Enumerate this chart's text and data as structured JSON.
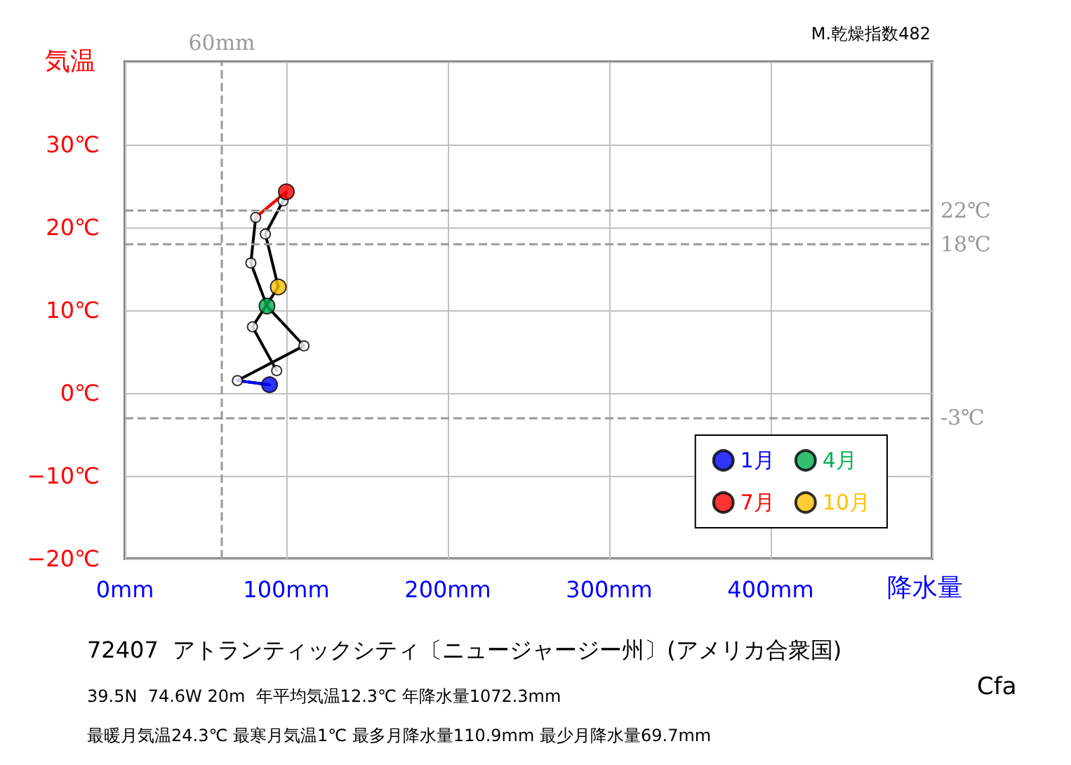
{
  "chart_data": {
    "type": "line",
    "title": "72407  アトランティックシティ〔ニュージャージー州〕(アメリカ合衆国)",
    "xlabel": "降水量",
    "ylabel": "気温",
    "xlim": [
      0,
      500
    ],
    "xticks": [
      {
        "value": 0,
        "label": "0mm"
      },
      {
        "value": 100,
        "label": "100mm"
      },
      {
        "value": 200,
        "label": "200mm"
      },
      {
        "value": 300,
        "label": "300mm"
      },
      {
        "value": 400,
        "label": "400mm"
      },
      {
        "value": 500,
        "label": null
      }
    ],
    "ylim": [
      -20,
      40
    ],
    "yticks": [
      {
        "value": -20,
        "label": "−20℃"
      },
      {
        "value": -10,
        "label": "−10℃"
      },
      {
        "value": 0,
        "label": "0℃"
      },
      {
        "value": 10,
        "label": "10℃"
      },
      {
        "value": 20,
        "label": "20℃"
      },
      {
        "value": 30,
        "label": "30℃"
      },
      {
        "value": 40,
        "label": null
      }
    ],
    "grid": true,
    "legend": "bottom right",
    "series": [
      {
        "color": "#000000",
        "marker": "none",
        "line_style": "solid",
        "x": [
          89.6,
          69.7,
          110.9,
          88,
          78,
          81,
          100,
          98,
          87,
          95,
          79,
          94
        ],
        "values": [
          1,
          1.5,
          5.7,
          10.5,
          15.7,
          21.2,
          24.3,
          23.2,
          19.2,
          12.8,
          8,
          2.7
        ]
      },
      {
        "color": "#0000ff",
        "marker": "none",
        "line_style": "solid",
        "x": [
          89.6,
          69.7
        ],
        "values": [
          1,
          1.5
        ]
      },
      {
        "color": "#ff0000",
        "marker": "none",
        "line_style": "solid",
        "x": [
          81,
          100
        ],
        "values": [
          21.2,
          24.3
        ]
      },
      {
        "type": "scatter",
        "color": "#ffffff",
        "marker": "circle",
        "x": [
          69.7,
          110.9,
          78,
          81,
          98,
          87,
          79,
          94
        ],
        "values": [
          1.5,
          5.7,
          15.7,
          21.2,
          23.2,
          19.2,
          8,
          2.7
        ]
      },
      {
        "type": "scatter",
        "name": "1月",
        "color": "#0000ff",
        "marker": "circle",
        "x": [
          89.6
        ],
        "values": [
          1
        ]
      },
      {
        "type": "scatter",
        "name": "4月",
        "color": "#00b050",
        "marker": "circle",
        "x": [
          88
        ],
        "values": [
          10.5
        ]
      },
      {
        "type": "scatter",
        "name": "7月",
        "color": "#ff0000",
        "marker": "circle",
        "x": [
          100
        ],
        "values": [
          24.3
        ]
      },
      {
        "type": "scatter",
        "name": "10月",
        "color": "#ffc000",
        "marker": "circle",
        "x": [
          95
        ],
        "values": [
          12.8
        ]
      }
    ],
    "ref_lines": [
      {
        "axis": "y",
        "value": 22,
        "label": "22℃",
        "color": "#999999",
        "line_style": "dashed"
      },
      {
        "axis": "y",
        "value": 18,
        "label": "18℃",
        "color": "#999999",
        "line_style": "dashed"
      },
      {
        "axis": "y",
        "value": -3,
        "label": "-3℃",
        "color": "#999999",
        "line_style": "dashed"
      },
      {
        "axis": "x",
        "value": 60,
        "label": "60mm",
        "color": "#999999",
        "line_style": "dashed"
      }
    ],
    "annotations": [
      "M.乾燥指数482",
      "39.5N  74.6W 20m  年平均気温12.3℃ 年降水量1072.3mm",
      "最暖月気温24.3℃ 最寒月気温1℃ 最多月降水量110.9mm 最少月降水量69.7mm",
      "Cfa"
    ]
  }
}
